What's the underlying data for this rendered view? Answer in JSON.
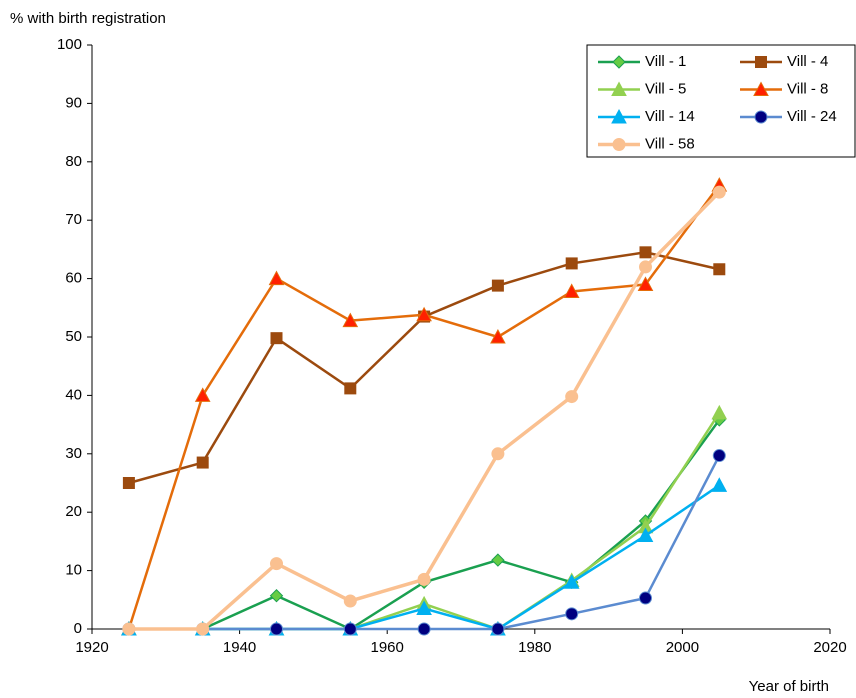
{
  "chart_data": {
    "type": "line",
    "y_label": "% with birth registration",
    "x_label": "Year of birth",
    "x": [
      1925,
      1935,
      1945,
      1955,
      1965,
      1975,
      1985,
      1995,
      2005
    ],
    "xlim": [
      1920,
      2020
    ],
    "xticks": [
      1920,
      1940,
      1960,
      1980,
      2000,
      2020
    ],
    "ylim": [
      0,
      100
    ],
    "yticks": [
      0,
      10,
      20,
      30,
      40,
      50,
      60,
      70,
      80,
      90,
      100
    ],
    "grid": false,
    "legend": "upper right",
    "series": [
      {
        "name": "Vill - 1",
        "color": "#1aa050",
        "marker": "diamond",
        "marker_color": "#66cc44",
        "values": [
          0,
          0,
          5.7,
          0,
          8,
          11.8,
          8,
          18.5,
          35.8
        ]
      },
      {
        "name": "Vill - 4",
        "color": "#9c4a0e",
        "marker": "square",
        "marker_color": "#9c4a0e",
        "values": [
          25,
          28.5,
          49.8,
          41.2,
          53.5,
          58.8,
          62.6,
          64.5,
          61.6
        ]
      },
      {
        "name": "Vill - 5",
        "color": "#92d050",
        "marker": "triangle",
        "marker_color": "#92d050",
        "values": [
          0,
          0,
          0,
          0,
          4.3,
          0,
          8.3,
          17.5,
          37
        ]
      },
      {
        "name": "Vill - 8",
        "color": "#e46c0a",
        "marker": "triangle",
        "marker_color": "#ff2000",
        "values": [
          0,
          40,
          60,
          52.8,
          53.8,
          50,
          57.8,
          59,
          76
        ]
      },
      {
        "name": "Vill - 14",
        "color": "#00b0f0",
        "marker": "triangle",
        "marker_color": "#00b0f0",
        "values": [
          0,
          0,
          0,
          0,
          3.5,
          0,
          8,
          16,
          24.6
        ]
      },
      {
        "name": "Vill - 24",
        "color": "#5b8bd0",
        "marker": "circle",
        "marker_color": "#000080",
        "values": [
          0,
          0,
          0,
          0,
          0,
          0,
          2.6,
          5.3,
          29.7
        ]
      },
      {
        "name": "Vill - 58",
        "color": "#fac090",
        "marker": "circle",
        "marker_color": "#fac090",
        "values": [
          0,
          0,
          11.2,
          4.8,
          8.5,
          30,
          39.8,
          62,
          74.8
        ]
      }
    ]
  }
}
